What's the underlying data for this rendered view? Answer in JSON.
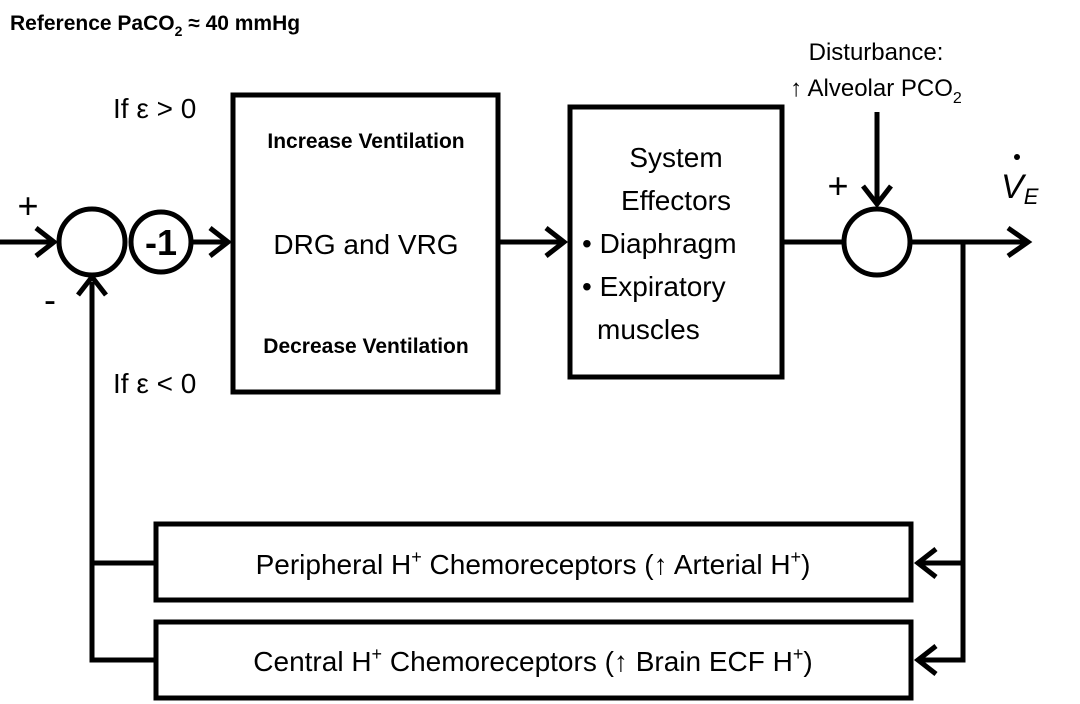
{
  "reference": {
    "prefix": "Reference PaCO",
    "sub": "2",
    "suffix": " ≈ 40 mmHg"
  },
  "disturbance": {
    "line1": "Disturbance:",
    "line2": "↑ Alveolar PCO",
    "sub": "2"
  },
  "output": {
    "symbol": "V",
    "sub": "E"
  },
  "comparator": {
    "plus": "+",
    "minus": "-"
  },
  "gain": {
    "label": "-1"
  },
  "conditions": {
    "positive": "If ε > 0",
    "negative": "If ε < 0"
  },
  "controller": {
    "top": "Increase Ventilation",
    "middle": "DRG and VRG",
    "bottom": "Decrease Ventilation"
  },
  "effectors": {
    "line1": "System",
    "line2": "Effectors",
    "line3": "• Diaphragm",
    "line4": "• Expiratory",
    "line5": "muscles"
  },
  "summing": {
    "plus": "+"
  },
  "feedback": {
    "peripheral": {
      "a": "Peripheral H",
      "sup1": "+",
      "b": " Chemoreceptors (↑ Arterial H",
      "sup2": "+",
      "c": ")"
    },
    "central": {
      "a": "Central H",
      "sup1": "+",
      "b": " Chemoreceptors (↑ Brain ECF H",
      "sup2": "+",
      "c": ")"
    }
  }
}
